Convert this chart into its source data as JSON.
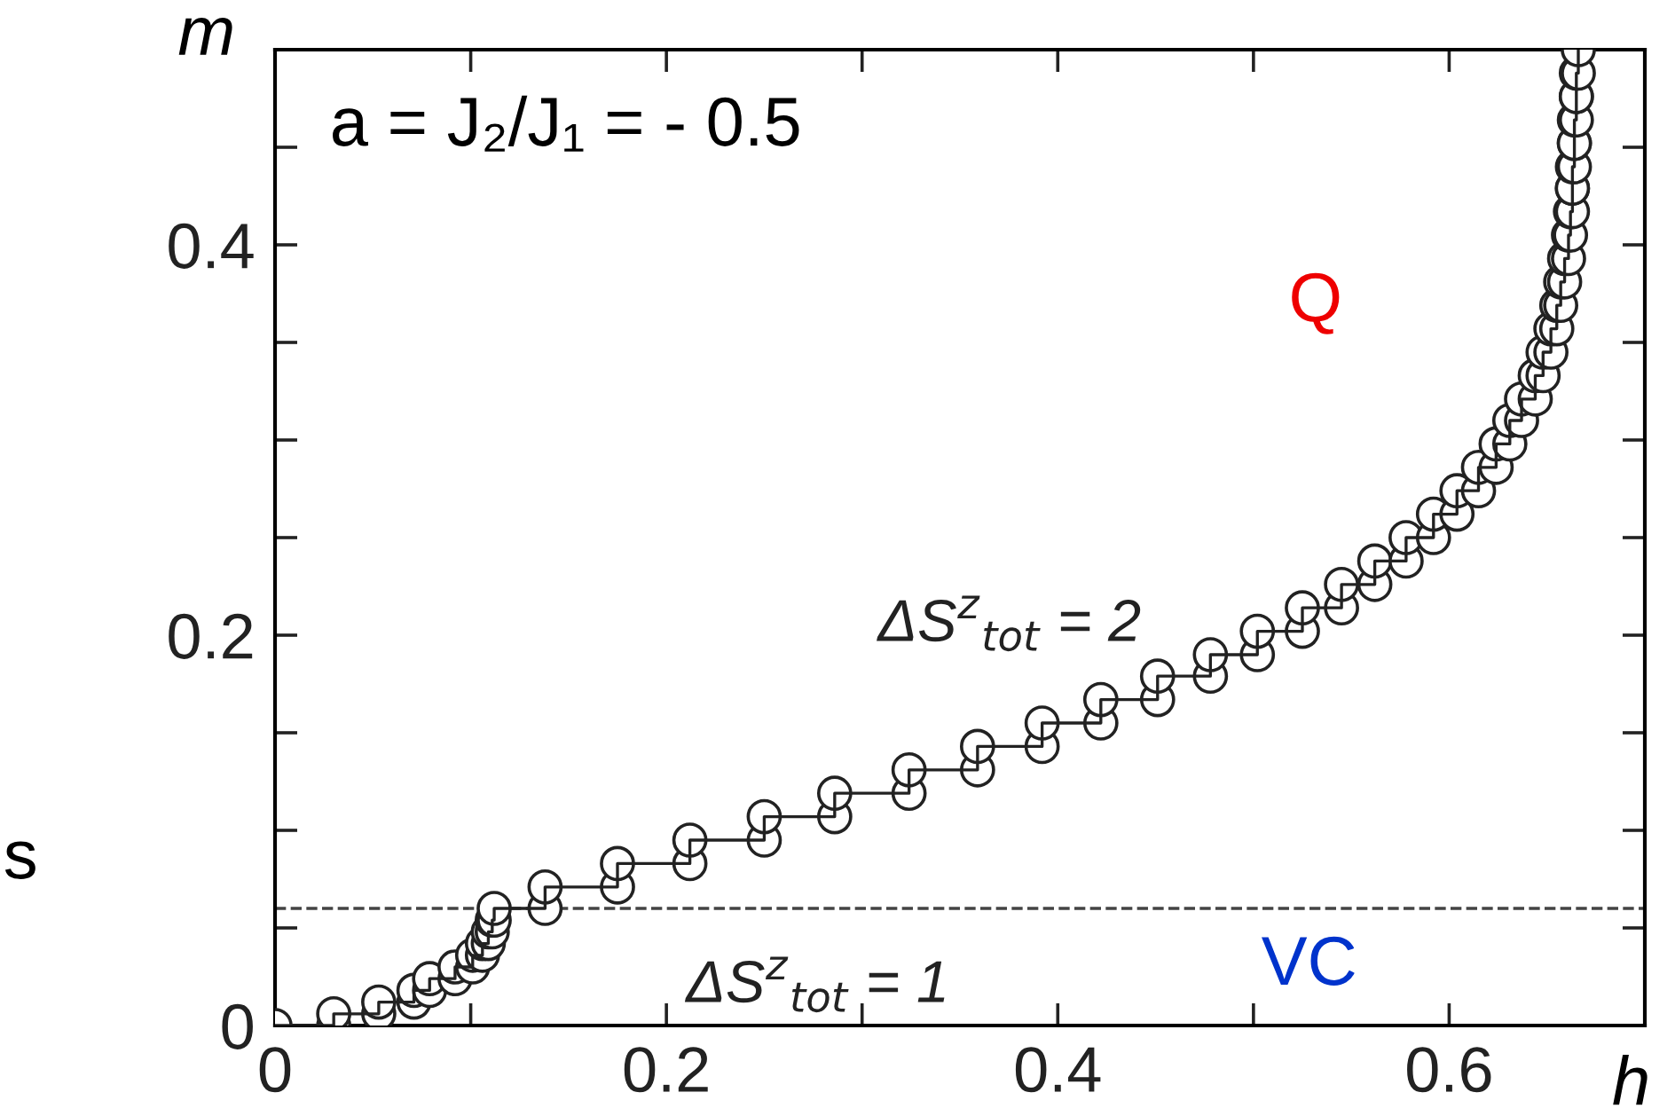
{
  "chart_data": {
    "type": "line",
    "xlabel": "h",
    "ylabel": "m",
    "x": [
      0,
      0.03,
      0.03,
      0.053,
      0.053,
      0.071,
      0.071,
      0.079,
      0.079,
      0.092,
      0.092,
      0.101,
      0.101,
      0.106,
      0.106,
      0.109,
      0.109,
      0.111,
      0.111,
      0.112,
      0.112,
      0.138,
      0.138,
      0.175,
      0.175,
      0.212,
      0.212,
      0.25,
      0.25,
      0.286,
      0.286,
      0.324,
      0.324,
      0.359,
      0.359,
      0.392,
      0.392,
      0.422,
      0.422,
      0.451,
      0.451,
      0.478,
      0.478,
      0.502,
      0.502,
      0.525,
      0.525,
      0.545,
      0.545,
      0.562,
      0.562,
      0.578,
      0.578,
      0.592,
      0.592,
      0.604,
      0.604,
      0.615,
      0.615,
      0.624,
      0.624,
      0.631,
      0.631,
      0.637,
      0.637,
      0.644,
      0.644,
      0.648,
      0.648,
      0.652,
      0.652,
      0.655,
      0.655,
      0.657,
      0.657,
      0.659,
      0.659,
      0.661,
      0.661,
      0.662,
      0.662,
      0.663,
      0.663,
      0.663,
      0.663,
      0.664,
      0.664,
      0.664,
      0.664,
      0.665,
      0.665,
      0.665,
      0.665,
      0.666,
      0.666
    ],
    "series": [
      {
        "color": "#222222",
        "values": [
          0,
          0,
          0.006,
          0.006,
          0.012,
          0.012,
          0.018,
          0.018,
          0.024,
          0.024,
          0.03,
          0.03,
          0.036,
          0.036,
          0.042,
          0.042,
          0.048,
          0.048,
          0.054,
          0.054,
          0.06,
          0.06,
          0.071,
          0.071,
          0.083,
          0.083,
          0.095,
          0.095,
          0.107,
          0.107,
          0.119,
          0.119,
          0.131,
          0.131,
          0.143,
          0.143,
          0.155,
          0.155,
          0.167,
          0.167,
          0.179,
          0.179,
          0.19,
          0.19,
          0.202,
          0.202,
          0.214,
          0.214,
          0.226,
          0.226,
          0.238,
          0.238,
          0.25,
          0.25,
          0.262,
          0.262,
          0.274,
          0.274,
          0.286,
          0.286,
          0.298,
          0.298,
          0.31,
          0.31,
          0.321,
          0.321,
          0.333,
          0.333,
          0.345,
          0.345,
          0.357,
          0.357,
          0.369,
          0.369,
          0.381,
          0.381,
          0.393,
          0.393,
          0.405,
          0.405,
          0.417,
          0.417,
          0.429,
          0.429,
          0.44,
          0.44,
          0.452,
          0.452,
          0.464,
          0.464,
          0.476,
          0.476,
          0.488,
          0.488,
          0.5
        ]
      }
    ],
    "marker": "circle",
    "line_style": "solid",
    "xlim": [
      0,
      0.7
    ],
    "ylim": [
      0,
      0.5
    ],
    "xticks": [
      0,
      {
        "value": 0.1,
        "label": null
      },
      0.2,
      {
        "value": 0.3,
        "label": null
      },
      0.4,
      {
        "value": 0.5,
        "label": null
      },
      0.6
    ],
    "yticks": [
      0,
      {
        "value": 0.05,
        "label": null
      },
      {
        "value": 0.1,
        "label": null
      },
      {
        "value": 0.15,
        "label": null
      },
      0.2,
      {
        "value": 0.25,
        "label": null
      },
      {
        "value": 0.3,
        "label": null
      },
      {
        "value": 0.35,
        "label": null
      },
      0.4,
      {
        "value": 0.45,
        "label": null
      }
    ],
    "ref_lines": [
      {
        "axis": "y",
        "value": 0.06,
        "line_style": "dashed",
        "color": "#444444"
      }
    ],
    "annotations": [
      "a = J₂/J₁ = - 0.5",
      "Q",
      "ΔS$^{z}$$_{tot}$ = 2",
      "ΔS$^{z}$$_{tot}$ = 1",
      "VC",
      "s"
    ],
    "grid": false,
    "legend": false
  }
}
